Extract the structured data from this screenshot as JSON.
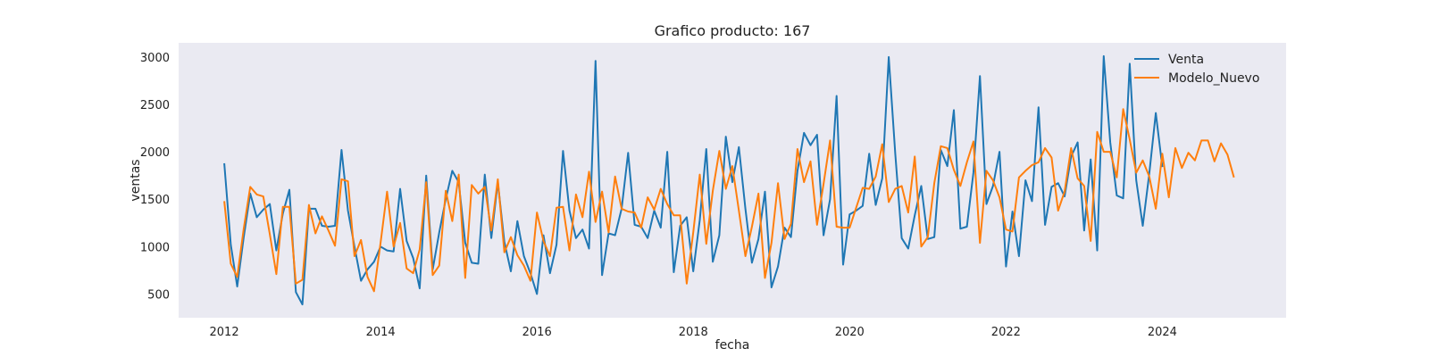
{
  "chart_data": {
    "type": "line",
    "title": "Grafico producto: 167",
    "xlabel": "fecha",
    "ylabel": "ventas",
    "xlim": [
      "2011-06",
      "2025-08"
    ],
    "ylim": [
      250,
      3150
    ],
    "x_ticks": [
      "2012",
      "2014",
      "2016",
      "2018",
      "2020",
      "2022",
      "2024"
    ],
    "y_ticks": [
      500,
      1000,
      1500,
      2000,
      2500,
      3000
    ],
    "grid": false,
    "legend": "top-right",
    "background": "#eaeaf2",
    "series": [
      {
        "name": "Venta",
        "color": "#1f77b4",
        "start": "2012-01",
        "values": [
          1880,
          1020,
          580,
          1100,
          1560,
          1310,
          1390,
          1450,
          960,
          1350,
          1600,
          520,
          390,
          1400,
          1400,
          1220,
          1210,
          1220,
          2020,
          1380,
          1000,
          640,
          760,
          840,
          1000,
          960,
          950,
          1610,
          1060,
          880,
          560,
          1750,
          760,
          1150,
          1500,
          1800,
          1680,
          1040,
          830,
          820,
          1760,
          1090,
          1680,
          1050,
          740,
          1270,
          900,
          720,
          500,
          1120,
          720,
          1020,
          2010,
          1380,
          1090,
          1180,
          980,
          2960,
          700,
          1140,
          1120,
          1400,
          1990,
          1230,
          1210,
          1090,
          1380,
          1200,
          2000,
          730,
          1220,
          1310,
          740,
          1280,
          2030,
          840,
          1120,
          2160,
          1680,
          2050,
          1400,
          830,
          1080,
          1580,
          570,
          790,
          1200,
          1100,
          1800,
          2200,
          2070,
          2180,
          1120,
          1500,
          2590,
          810,
          1340,
          1380,
          1430,
          1980,
          1440,
          1720,
          3000,
          1980,
          1090,
          980,
          1330,
          1640,
          1080,
          1100,
          2020,
          1850,
          2440,
          1190,
          1210,
          1780,
          2800,
          1450,
          1640,
          2000,
          790,
          1370,
          900,
          1700,
          1480,
          2470,
          1230,
          1630,
          1670,
          1530,
          1950,
          2100,
          1170,
          1920,
          960,
          3010,
          2100,
          1540,
          1510,
          2930,
          1700,
          1220,
          1770,
          2410,
          1840
        ]
      },
      {
        "name": "Modelo_Nuevo",
        "color": "#ff7f0e",
        "start": "2012-01",
        "values": [
          1480,
          820,
          680,
          1190,
          1630,
          1550,
          1530,
          1130,
          710,
          1420,
          1420,
          610,
          650,
          1440,
          1140,
          1320,
          1170,
          1010,
          1710,
          1690,
          900,
          1070,
          680,
          530,
          1040,
          1580,
          1000,
          1250,
          770,
          720,
          970,
          1680,
          700,
          800,
          1590,
          1270,
          1760,
          670,
          1650,
          1560,
          1630,
          1170,
          1710,
          940,
          1100,
          910,
          800,
          640,
          1360,
          1060,
          900,
          1410,
          1420,
          960,
          1550,
          1310,
          1790,
          1260,
          1580,
          1150,
          1740,
          1400,
          1370,
          1360,
          1200,
          1520,
          1390,
          1610,
          1450,
          1330,
          1330,
          610,
          1150,
          1760,
          1030,
          1590,
          2010,
          1610,
          1850,
          1380,
          900,
          1210,
          1560,
          670,
          1040,
          1670,
          1080,
          1240,
          2030,
          1680,
          1900,
          1230,
          1660,
          2120,
          1210,
          1200,
          1200,
          1410,
          1620,
          1610,
          1740,
          2080,
          1470,
          1610,
          1640,
          1360,
          1950,
          1000,
          1100,
          1670,
          2060,
          2040,
          1810,
          1640,
          1890,
          2110,
          1040,
          1800,
          1700,
          1520,
          1180,
          1160,
          1730,
          1800,
          1860,
          1890,
          2040,
          1940,
          1380,
          1580,
          2040,
          1720,
          1640,
          1060,
          2210,
          2000,
          2000,
          1730,
          2450,
          2130,
          1780,
          1910,
          1740,
          1400,
          1980,
          1520,
          2040,
          1830,
          1990,
          1910,
          2120,
          2120,
          1900,
          2090,
          1970,
          1730
        ]
      }
    ]
  }
}
